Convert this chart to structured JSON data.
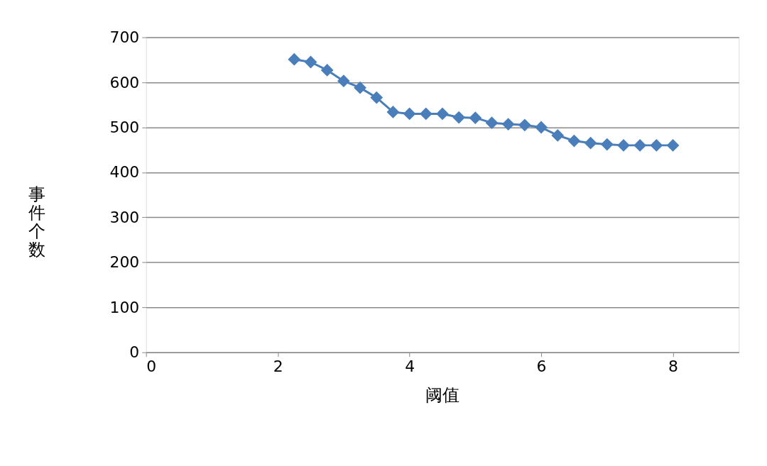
{
  "chart_data": {
    "type": "line",
    "xlabel": "阈值",
    "ylabel": "事件个数",
    "x": [
      2.25,
      2.5,
      2.75,
      3.0,
      3.25,
      3.5,
      3.75,
      4.0,
      4.25,
      4.5,
      4.75,
      5.0,
      5.25,
      5.5,
      5.75,
      6.0,
      6.25,
      6.5,
      6.75,
      7.0,
      7.25,
      7.5,
      7.75,
      8.0
    ],
    "series": [
      {
        "color": "#4a7ebb",
        "values": [
          651,
          645,
          627,
          603,
          588,
          566,
          534,
          530,
          530,
          530,
          522,
          521,
          510,
          507,
          505,
          500,
          482,
          470,
          465,
          462,
          460,
          460,
          460,
          460
        ]
      }
    ],
    "xlim": [
      0,
      9
    ],
    "xticks": [
      0,
      2,
      4,
      6,
      8
    ],
    "ylim": [
      0,
      700
    ],
    "yticks": [
      0,
      100,
      200,
      300,
      400,
      500,
      600,
      700
    ],
    "grid": "y",
    "marker": "diamond",
    "line_style": "solid"
  }
}
